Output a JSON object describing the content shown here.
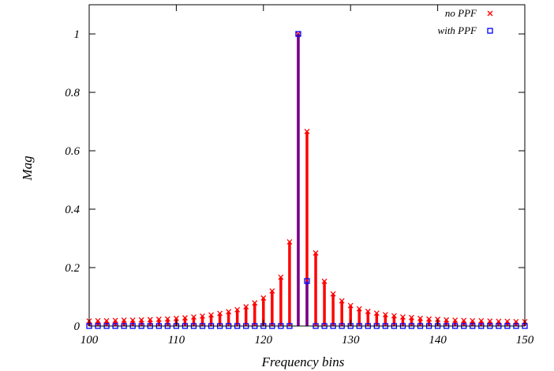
{
  "chart_data": {
    "type": "scatter",
    "title": "",
    "xlabel": "Frequency bins",
    "ylabel": "Mag",
    "xlim": [
      100,
      150
    ],
    "ylim": [
      0,
      1.1
    ],
    "x_ticks": [
      100,
      110,
      120,
      130,
      140,
      150
    ],
    "y_ticks": [
      0,
      0.2,
      0.4,
      0.6,
      0.8,
      1
    ],
    "x_tick_labels": [
      "100",
      "110",
      "120",
      "130",
      "140",
      "150"
    ],
    "y_tick_labels": [
      "0",
      "0.2",
      "0.4",
      "0.6",
      "0.8",
      "1"
    ],
    "grid": false,
    "legend_position": "top-right",
    "series": [
      {
        "name": "no PPF",
        "color": "#ff0000",
        "marker": "x",
        "impulses": true,
        "x": [
          100,
          101,
          102,
          103,
          104,
          105,
          106,
          107,
          108,
          109,
          110,
          111,
          112,
          113,
          114,
          115,
          116,
          117,
          118,
          119,
          120,
          121,
          122,
          123,
          124,
          125,
          126,
          127,
          128,
          129,
          130,
          131,
          132,
          133,
          134,
          135,
          136,
          137,
          138,
          139,
          140,
          141,
          142,
          143,
          144,
          145,
          146,
          147,
          148,
          149,
          150
        ],
        "y": [
          0.017,
          0.018,
          0.018,
          0.019,
          0.02,
          0.02,
          0.021,
          0.022,
          0.023,
          0.024,
          0.026,
          0.028,
          0.031,
          0.034,
          0.038,
          0.043,
          0.049,
          0.056,
          0.066,
          0.079,
          0.096,
          0.12,
          0.167,
          0.288,
          1.0,
          0.666,
          0.25,
          0.153,
          0.11,
          0.086,
          0.07,
          0.059,
          0.05,
          0.044,
          0.039,
          0.035,
          0.031,
          0.029,
          0.026,
          0.024,
          0.023,
          0.021,
          0.02,
          0.019,
          0.018,
          0.018,
          0.017,
          0.016,
          0.016,
          0.015,
          0.015
        ]
      },
      {
        "name": "with PPF",
        "color": "#0000ff",
        "marker": "square",
        "impulses": true,
        "x": [
          100,
          101,
          102,
          103,
          104,
          105,
          106,
          107,
          108,
          109,
          110,
          111,
          112,
          113,
          114,
          115,
          116,
          117,
          118,
          119,
          120,
          121,
          122,
          123,
          124,
          125,
          126,
          127,
          128,
          129,
          130,
          131,
          132,
          133,
          134,
          135,
          136,
          137,
          138,
          139,
          140,
          141,
          142,
          143,
          144,
          145,
          146,
          147,
          148,
          149,
          150
        ],
        "y": [
          0,
          0,
          0,
          0,
          0,
          0,
          0,
          0,
          0,
          0,
          0,
          0,
          0,
          0,
          0,
          0,
          0,
          0,
          0,
          0,
          0,
          0,
          0,
          0,
          1.0,
          0.154,
          0,
          0,
          0,
          0,
          0,
          0,
          0,
          0,
          0,
          0,
          0,
          0,
          0,
          0,
          0,
          0,
          0,
          0,
          0,
          0,
          0,
          0,
          0,
          0,
          0
        ]
      }
    ]
  }
}
